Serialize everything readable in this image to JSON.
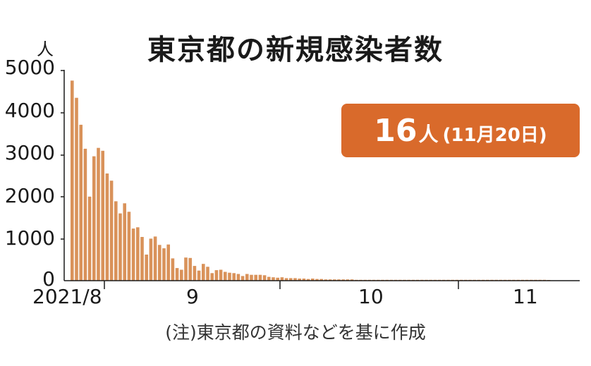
{
  "chart_data": {
    "type": "bar",
    "title": "東京都の新規感染者数",
    "unit_label": "人",
    "ylim": [
      0,
      5000
    ],
    "yticks": [
      "5000",
      "4000",
      "3000",
      "2000",
      "1000",
      "0"
    ],
    "xtick_labels": [
      "2021/8",
      "9",
      "10",
      "11"
    ],
    "x_start": "2021-08-01",
    "x_end": "2021-11-20",
    "bar_color": "#d9925a",
    "values": [
      4760,
      4350,
      3710,
      3140,
      2000,
      2960,
      3160,
      3090,
      2550,
      2380,
      1890,
      1600,
      1840,
      1640,
      1240,
      1270,
      1040,
      620,
      1000,
      1050,
      850,
      770,
      860,
      530,
      300,
      260,
      550,
      540,
      350,
      240,
      400,
      330,
      180,
      250,
      260,
      210,
      190,
      180,
      160,
      110,
      160,
      140,
      140,
      140,
      130,
      90,
      80,
      70,
      80,
      60,
      60,
      60,
      50,
      50,
      40,
      50,
      40,
      40,
      30,
      30,
      30,
      30,
      30,
      30,
      30,
      20,
      20,
      20,
      20,
      20,
      20,
      20,
      20,
      20,
      20,
      20,
      20,
      20,
      20,
      20,
      20,
      20,
      20,
      20,
      20,
      20,
      20,
      20,
      20,
      20,
      20,
      20,
      20,
      20,
      20,
      20,
      20,
      20,
      20,
      20,
      20,
      20,
      20,
      20,
      20,
      20,
      20,
      20,
      20,
      16
    ]
  },
  "badge": {
    "value": "16",
    "unit": "人",
    "date": "(11月20日)",
    "color": "#d96a2b"
  },
  "note": "(注)東京都の資料などを基に作成"
}
